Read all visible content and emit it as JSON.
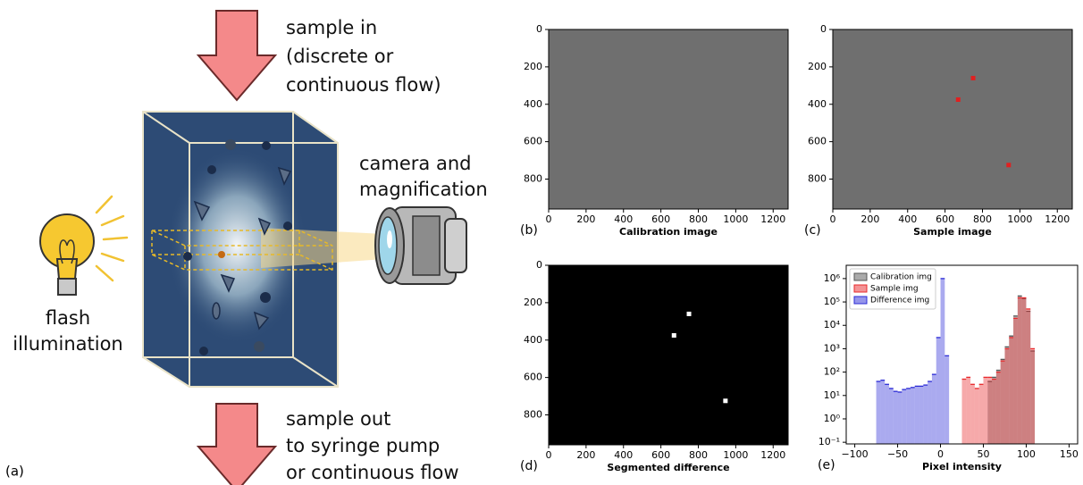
{
  "diagram": {
    "panel_label": "(a)",
    "sample_in": [
      "sample in",
      "(discrete or",
      "continuous flow)"
    ],
    "camera": [
      "camera and",
      "magnification"
    ],
    "flash": [
      "flash",
      "illumination"
    ],
    "sample_out": [
      "sample out",
      "to syringe pump",
      "or continuous flow"
    ]
  },
  "chart_data": [
    {
      "type": "image",
      "panel_label": "(b)",
      "xlabel": "Calibration image",
      "background": "#6f6f6f",
      "xlim": [
        0,
        1280
      ],
      "ylim": [
        960,
        0
      ],
      "xticks": [
        0,
        200,
        400,
        600,
        800,
        1000,
        1200
      ],
      "yticks": [
        0,
        200,
        400,
        600,
        800
      ],
      "spot_color": "#333333",
      "points_x": [],
      "points_y": []
    },
    {
      "type": "image",
      "panel_label": "(c)",
      "xlabel": "Sample image",
      "background": "#6f6f6f",
      "xlim": [
        0,
        1280
      ],
      "ylim": [
        960,
        0
      ],
      "xticks": [
        0,
        200,
        400,
        600,
        800,
        1000,
        1200
      ],
      "yticks": [
        0,
        200,
        400,
        600,
        800
      ],
      "spot_color": "#e02020",
      "points_x": [
        750,
        670,
        940
      ],
      "points_y": [
        260,
        375,
        725
      ]
    },
    {
      "type": "image",
      "panel_label": "(d)",
      "xlabel": "Segmented difference",
      "background": "#000000",
      "xlim": [
        0,
        1280
      ],
      "ylim": [
        960,
        0
      ],
      "xticks": [
        0,
        200,
        400,
        600,
        800,
        1000,
        1200
      ],
      "yticks": [
        0,
        200,
        400,
        600,
        800
      ],
      "spot_color": "#ffffff",
      "points_x": [
        750,
        670,
        945
      ],
      "points_y": [
        260,
        375,
        725
      ]
    },
    {
      "type": "histogram",
      "panel_label": "(e)",
      "xlabel": "Pixel intensity",
      "log_y": true,
      "legend": "upper left",
      "xlim": [
        -110,
        160
      ],
      "ylim": [
        0.085,
        3700000
      ],
      "xticks": [
        {
          "value": -100,
          "label": "−100"
        },
        {
          "value": -50,
          "label": "−50"
        },
        0,
        50,
        100,
        150
      ],
      "yticks": [
        {
          "value": 0.1,
          "label": "10⁻¹"
        },
        {
          "value": 1,
          "label": "10⁰"
        },
        {
          "value": 10,
          "label": "10¹"
        },
        {
          "value": 100,
          "label": "10²"
        },
        {
          "value": 1000,
          "label": "10³"
        },
        {
          "value": 10000,
          "label": "10⁴"
        },
        {
          "value": 100000,
          "label": "10⁵"
        },
        {
          "value": 1000000,
          "label": "10⁶"
        }
      ],
      "series": [
        {
          "name": "Calibration img",
          "color": "#555555",
          "bins": [
            55,
            60,
            65,
            70,
            75,
            80,
            85,
            90,
            95,
            100,
            105,
            110
          ],
          "values": [
            40,
            60,
            120,
            350,
            1200,
            3500,
            25000,
            180000,
            140000,
            40000,
            800
          ]
        },
        {
          "name": "Sample img",
          "color": "#e8282b",
          "bins": [
            25,
            30,
            35,
            40,
            45,
            50,
            55,
            60,
            65,
            70,
            75,
            80,
            85,
            90,
            95,
            100,
            105,
            110
          ],
          "values": [
            50,
            60,
            30,
            20,
            30,
            60,
            60,
            50,
            100,
            300,
            1000,
            3000,
            20000,
            150000,
            150000,
            50000,
            1000
          ]
        },
        {
          "name": "Difference img",
          "color": "#2b2bd6",
          "bins": [
            -75,
            -70,
            -65,
            -60,
            -55,
            -50,
            -45,
            -40,
            -35,
            -30,
            -25,
            -20,
            -15,
            -10,
            -5,
            0,
            5,
            10
          ],
          "values": [
            40,
            45,
            30,
            20,
            15,
            14,
            18,
            20,
            22,
            25,
            25,
            28,
            40,
            80,
            3000,
            1000000,
            500
          ]
        }
      ]
    }
  ]
}
